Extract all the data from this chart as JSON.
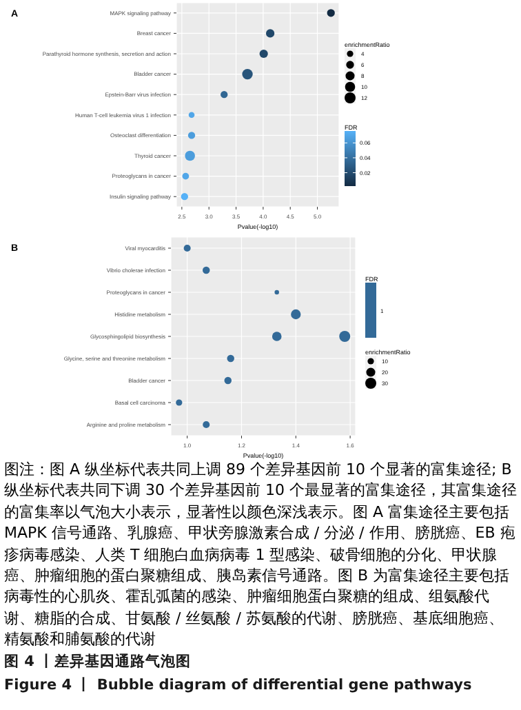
{
  "chart_data": [
    {
      "type": "bubble",
      "title": "A",
      "orientation": "horizontal",
      "xlabel": "Pvalue(-log10)",
      "legend_title": "enrichmentRatio",
      "clabel": "FDR",
      "grid": true,
      "categories": [
        "MAPK signaling pathway",
        "Breast cancer",
        "Parathyroid hormone synthesis, secretion and action",
        "Bladder cancer",
        "Epstein-Barr virus infection",
        "Human T-cell leukemia virus 1 infection",
        "Osteoclast differentiation",
        "Thyroid cancer",
        "Proteoglycans in cancer",
        "Insulin signaling pathway"
      ],
      "series": [
        {
          "values": [
            5.25,
            4.13,
            4.01,
            3.71,
            3.28,
            2.68,
            2.68,
            2.65,
            2.57,
            2.55
          ],
          "sizes": [
            6,
            7,
            7,
            11,
            5,
            3.5,
            5,
            10,
            4.5,
            5
          ],
          "cvalues": [
            0.002,
            0.018,
            0.018,
            0.025,
            0.035,
            0.07,
            0.065,
            0.065,
            0.07,
            0.076
          ]
        }
      ],
      "xlim": [
        2.4,
        5.4
      ],
      "xticks": [
        2.5,
        {
          "value": 3,
          "label": "3.0"
        },
        3.5,
        {
          "value": 4,
          "label": "4.0"
        },
        4.5,
        {
          "value": 5,
          "label": "5.0"
        }
      ],
      "size_legend": [
        4,
        6,
        8,
        10,
        12
      ],
      "clim": [
        0.002,
        0.076
      ],
      "cticks": [
        0.02,
        0.04,
        0.06
      ]
    },
    {
      "type": "bubble",
      "title": "B",
      "orientation": "horizontal",
      "xlabel": "Pvalue(-log10)",
      "legend_title": "enrichmentRatio",
      "clabel": "FDR",
      "grid": true,
      "legend": "right",
      "categories": [
        "Viral myocarditis",
        "Vibrio cholerae infection",
        "Proteoglycans in cancer",
        "Histidine metabolism",
        "Glycosphingolipid biosynthesis",
        "Glycine, serine and threonine metabolism",
        "Bladder cancer",
        "Basal cell carcinoma",
        "Arginine and proline metabolism"
      ],
      "series": [
        {
          "name": "1",
          "color": "#336a98",
          "values": [
            1.0,
            1.07,
            1.33,
            1.4,
            1.33,
            1.16,
            1.15,
            0.97,
            1.07
          ],
          "sizes": [
            12,
            13,
            5,
            24,
            22,
            13,
            13,
            10,
            12
          ]
        },
        {
          "color": "#336a98",
          "values": [
            null,
            null,
            null,
            null,
            1.58,
            null,
            null,
            null,
            null
          ],
          "sizes": [
            null,
            null,
            null,
            null,
            30,
            null,
            null,
            null,
            null
          ]
        }
      ],
      "xlim": [
        0.94,
        1.62
      ],
      "xticks": [
        {
          "value": 1,
          "label": "1.0"
        },
        1.2,
        1.4,
        1.6
      ],
      "size_legend": [
        10,
        20,
        30
      ],
      "annotations": [
        "图注：图 A 纵坐标代表共同上调 89 个差异基因前 10 个显著的富集途径; B 纵坐标代表共同下调 30 个差异基因前 10 个最显著的富集途径，其富集途径的富集率以气泡大小表示，显著性以颜色深浅表示。图 A 富集途径主要包括 MAPK 信号通路、乳腺癌、甲状旁腺激素合成 / 分泌 / 作用、膀胱癌、EB 疱疹病毒感染、人类 T 细胞白血病病毒 1 型感染、破骨细胞的分化、甲状腺癌、肿瘤细胞的蛋白聚糖组成、胰岛素信号通路。图 B 为富集途径主要包括病毒性的心肌炎、霍乱弧菌的感染、肿瘤细胞蛋白聚糖的组成、组氨酸代谢、糖脂的合成、甘氨酸 / 丝氨酸 / 苏氨酸的代谢、膀胱癌、基底细胞癌、精氨酸和脯氨酸的代谢",
        "图 4 丨差异基因通路气泡图",
        "Figure 4 丨 Bubble diagram of differential gene pathways"
      ]
    }
  ]
}
